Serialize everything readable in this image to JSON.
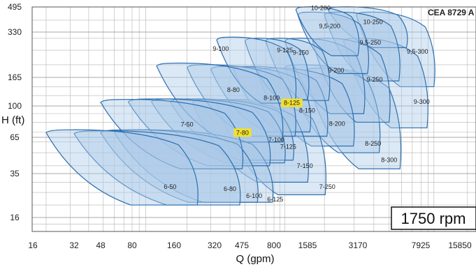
{
  "chart_data": {
    "type": "area",
    "title": "CEA 8729 A",
    "xlabel": "Q (gpm)",
    "ylabel": "H (ft)",
    "x_scale": "log",
    "y_scale": "log",
    "xlim": [
      16,
      26000
    ],
    "ylim": [
      14,
      495
    ],
    "x_ticks": [
      16,
      32,
      48,
      80,
      160,
      320,
      475,
      800,
      1585,
      3170,
      7925,
      15850
    ],
    "y_ticks": [
      495,
      330,
      165,
      100,
      65,
      35,
      16
    ],
    "grid": true,
    "annotation": "1750 rpm",
    "highlight_color": "#f3e12a",
    "fill_color": "#a9c7e6",
    "line_color": "#2d6fb0",
    "series": [
      {
        "name": "6-50",
        "x": [
          20,
          250
        ],
        "y": [
          72,
          20
        ],
        "label_at": [
          150,
          27
        ],
        "highlight": false
      },
      {
        "name": "6-80",
        "x": [
          32,
          480
        ],
        "y": [
          71,
          20
        ],
        "label_at": [
          400,
          26
        ],
        "highlight": false
      },
      {
        "name": "6-100",
        "x": [
          48,
          640
        ],
        "y": [
          72,
          21
        ],
        "label_at": [
          580,
          23
        ],
        "highlight": false
      },
      {
        "name": "6-125",
        "x": [
          60,
          820
        ],
        "y": [
          72,
          21
        ],
        "label_at": [
          820,
          21.5
        ],
        "highlight": false
      },
      {
        "name": "7-50",
        "x": [
          48,
          500
        ],
        "y": [
          112,
          38
        ],
        "label_at": [
          200,
          76
        ],
        "highlight": false
      },
      {
        "name": "7-80",
        "x": [
          75,
          780
        ],
        "y": [
          113,
          40
        ],
        "label_at": [
          480,
          68
        ],
        "highlight": true
      },
      {
        "name": "7-100",
        "x": [
          110,
          1050
        ],
        "y": [
          113,
          42
        ],
        "label_at": [
          840,
          61
        ],
        "highlight": false
      },
      {
        "name": "7-125",
        "x": [
          150,
          1250
        ],
        "y": [
          113,
          44
        ],
        "label_at": [
          1070,
          54
        ],
        "highlight": false
      },
      {
        "name": "7-150",
        "x": [
          220,
          1650
        ],
        "y": [
          112,
          30
        ],
        "label_at": [
          1500,
          39
        ],
        "highlight": false
      },
      {
        "name": "7-250",
        "x": [
          330,
          2100
        ],
        "y": [
          112,
          24
        ],
        "label_at": [
          2080,
          27
        ],
        "highlight": false
      },
      {
        "name": "8-80",
        "x": [
          120,
          1000
        ],
        "y": [
          205,
          60
        ],
        "label_at": [
          420,
          129
        ],
        "highlight": false
      },
      {
        "name": "8-100",
        "x": [
          200,
          1300
        ],
        "y": [
          200,
          66
        ],
        "label_at": [
          770,
          112
        ],
        "highlight": false
      },
      {
        "name": "8-125",
        "x": [
          300,
          1700
        ],
        "y": [
          195,
          70
        ],
        "label_at": [
          1150,
          103
        ],
        "highlight": true
      },
      {
        "name": "8-150",
        "x": [
          420,
          2150
        ],
        "y": [
          195,
          66
        ],
        "label_at": [
          1570,
          92
        ],
        "highlight": false
      },
      {
        "name": "8-200",
        "x": [
          600,
          3100
        ],
        "y": [
          190,
          56
        ],
        "label_at": [
          2380,
          77
        ],
        "highlight": false
      },
      {
        "name": "8-250",
        "x": [
          1000,
          4500
        ],
        "y": [
          200,
          50
        ],
        "label_at": [
          3950,
          57
        ],
        "highlight": false
      },
      {
        "name": "8-300",
        "x": [
          1500,
          6100
        ],
        "y": [
          190,
          38
        ],
        "label_at": [
          5000,
          43
        ],
        "highlight": false
      },
      {
        "name": "9-100",
        "x": [
          330,
          1300
        ],
        "y": [
          305,
          105
        ],
        "label_at": [
          350,
          250
        ],
        "highlight": false
      },
      {
        "name": "9-125",
        "x": [
          500,
          1650
        ],
        "y": [
          300,
          112
        ],
        "label_at": [
          1000,
          245
        ],
        "highlight": false
      },
      {
        "name": "9-150",
        "x": [
          700,
          2200
        ],
        "y": [
          300,
          110
        ],
        "label_at": [
          1380,
          236
        ],
        "highlight": false
      },
      {
        "name": "9-200",
        "x": [
          1000,
          3600
        ],
        "y": [
          300,
          90
        ],
        "label_at": [
          2350,
          180
        ],
        "highlight": false
      },
      {
        "name": "9-250",
        "x": [
          1700,
          5200
        ],
        "y": [
          300,
          80
        ],
        "label_at": [
          4050,
          155
        ],
        "highlight": false
      },
      {
        "name": "9-300",
        "x": [
          2600,
          9300
        ],
        "y": [
          300,
          74
        ],
        "label_at": [
          8050,
          105
        ],
        "highlight": false
      },
      {
        "name": "9,5-200",
        "x": [
          1300,
          3800
        ],
        "y": [
          455,
          175
        ],
        "label_at": [
          2150,
          355
        ],
        "highlight": false
      },
      {
        "name": "9,5-250",
        "x": [
          2000,
          6000
        ],
        "y": [
          455,
          155
        ],
        "label_at": [
          3800,
          275
        ],
        "highlight": false
      },
      {
        "name": "9,5-300",
        "x": [
          3100,
          10500
        ],
        "y": [
          455,
          140
        ],
        "label_at": [
          7550,
          240
        ],
        "highlight": false
      },
      {
        "name": "10-200",
        "x": [
          1250,
          3300
        ],
        "y": [
          495,
          230
        ],
        "label_at": [
          1900,
          475
        ],
        "highlight": false
      },
      {
        "name": "10-250",
        "x": [
          2100,
          6700
        ],
        "y": [
          495,
          260
        ],
        "label_at": [
          3950,
          380
        ],
        "highlight": false
      }
    ]
  }
}
